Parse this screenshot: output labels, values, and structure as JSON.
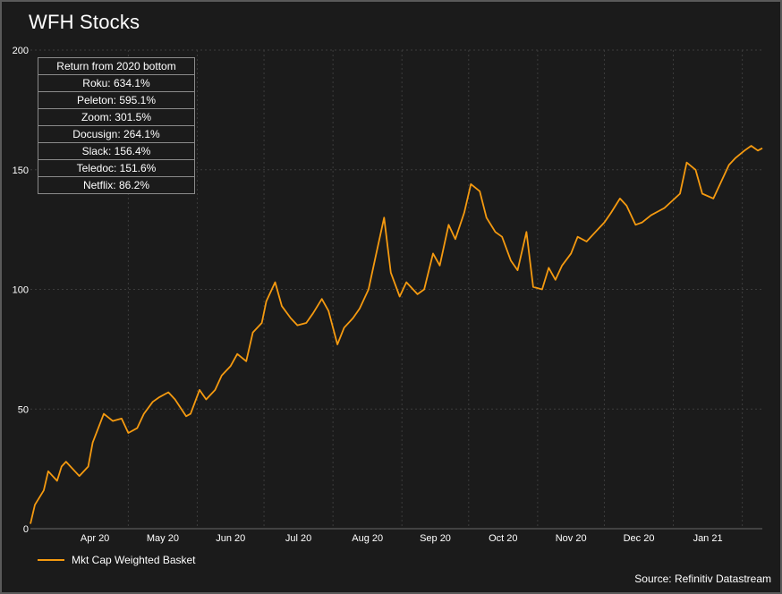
{
  "title": "WFH Stocks",
  "source": "Source: Refinitiv Datastream",
  "colors": {
    "background": "#1b1b1b",
    "line": "#f59a10",
    "grid": "#3c3c3c",
    "text": "#ffffff"
  },
  "table": {
    "header": "Return from 2020 bottom",
    "rows": [
      "Roku: 634.1%",
      "Peleton: 595.1%",
      "Zoom: 301.5%",
      "Docusign: 264.1%",
      "Slack: 156.4%",
      "Teledoc: 151.6%",
      "Netflix: 86.2%"
    ]
  },
  "chart_data": {
    "type": "line",
    "title": "WFH Stocks",
    "xlabel": "",
    "ylabel": "",
    "ylim": [
      0,
      200
    ],
    "yticks": [
      "0",
      "50",
      "100",
      "150",
      "200"
    ],
    "xticks": [
      "Apr 20",
      "May 20",
      "Jun 20",
      "Jul 20",
      "Aug 20",
      "Sep 20",
      "Oct 20",
      "Nov 20",
      "Dec 20",
      "Jan 21"
    ],
    "grid": true,
    "legend_position": "bottom-left",
    "x": [
      "2020-03-18",
      "2020-03-20",
      "2020-03-24",
      "2020-03-26",
      "2020-03-30",
      "2020-04-01",
      "2020-04-03",
      "2020-04-07",
      "2020-04-09",
      "2020-04-13",
      "2020-04-15",
      "2020-04-20",
      "2020-04-24",
      "2020-04-28",
      "2020-05-01",
      "2020-05-05",
      "2020-05-08",
      "2020-05-12",
      "2020-05-15",
      "2020-05-19",
      "2020-05-22",
      "2020-05-27",
      "2020-05-29",
      "2020-06-02",
      "2020-06-05",
      "2020-06-09",
      "2020-06-12",
      "2020-06-16",
      "2020-06-19",
      "2020-06-23",
      "2020-06-26",
      "2020-06-30",
      "2020-07-02",
      "2020-07-06",
      "2020-07-09",
      "2020-07-13",
      "2020-07-16",
      "2020-07-20",
      "2020-07-23",
      "2020-07-27",
      "2020-07-30",
      "2020-08-03",
      "2020-08-06",
      "2020-08-10",
      "2020-08-13",
      "2020-08-17",
      "2020-08-20",
      "2020-08-24",
      "2020-08-27",
      "2020-08-31",
      "2020-09-03",
      "2020-09-08",
      "2020-09-11",
      "2020-09-15",
      "2020-09-18",
      "2020-09-22",
      "2020-09-25",
      "2020-09-29",
      "2020-10-02",
      "2020-10-06",
      "2020-10-09",
      "2020-10-13",
      "2020-10-16",
      "2020-10-20",
      "2020-10-23",
      "2020-10-27",
      "2020-10-30",
      "2020-11-03",
      "2020-11-06",
      "2020-11-09",
      "2020-11-12",
      "2020-11-16",
      "2020-11-19",
      "2020-11-23",
      "2020-11-27",
      "2020-12-01",
      "2020-12-04",
      "2020-12-08",
      "2020-12-11",
      "2020-12-15",
      "2020-12-18",
      "2020-12-22",
      "2020-12-28",
      "2021-01-04",
      "2021-01-07",
      "2021-01-11",
      "2021-01-14",
      "2021-01-19",
      "2021-01-22",
      "2021-01-26",
      "2021-01-29",
      "2021-02-02",
      "2021-02-05",
      "2021-02-08",
      "2021-02-10"
    ],
    "series": [
      {
        "name": "Mkt Cap Weighted Basket",
        "values": [
          2,
          10,
          16,
          24,
          20,
          26,
          28,
          24,
          22,
          26,
          36,
          48,
          45,
          46,
          40,
          42,
          48,
          53,
          55,
          57,
          54,
          47,
          48,
          58,
          54,
          58,
          64,
          68,
          73,
          70,
          82,
          86,
          95,
          103,
          93,
          88,
          85,
          86,
          90,
          96,
          91,
          77,
          84,
          88,
          92,
          100,
          113,
          130,
          107,
          97,
          103,
          98,
          100,
          115,
          110,
          127,
          121,
          132,
          144,
          141,
          130,
          124,
          122,
          112,
          108,
          124,
          101,
          100,
          109,
          104,
          110,
          115,
          122,
          120,
          124,
          128,
          132,
          138,
          135,
          127,
          128,
          131,
          134,
          140,
          153,
          150,
          140,
          138,
          144,
          152,
          155,
          158,
          160,
          158,
          159
        ]
      }
    ]
  }
}
